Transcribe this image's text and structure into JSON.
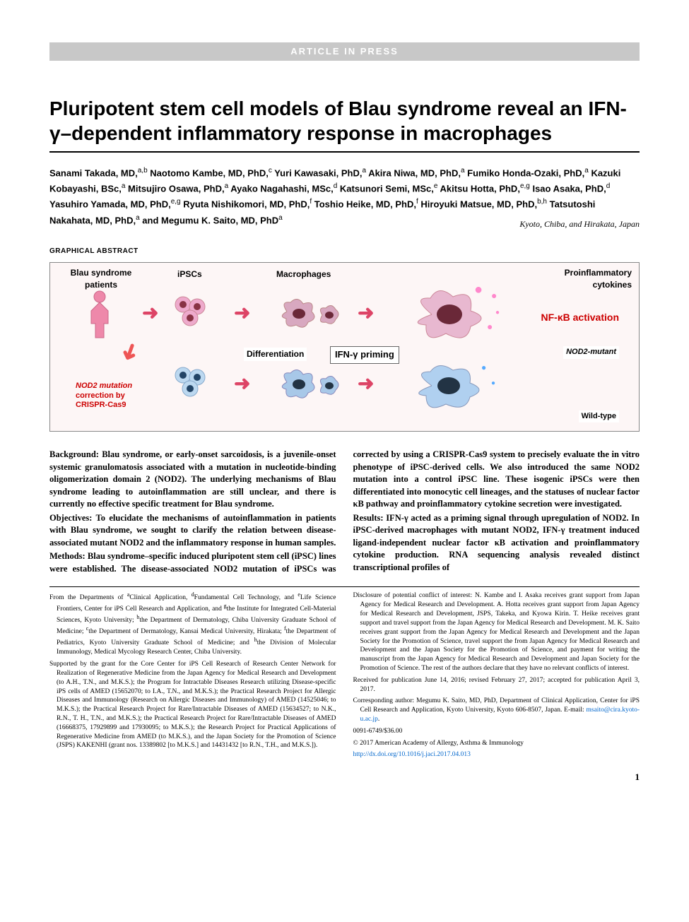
{
  "banner": "ARTICLE IN PRESS",
  "title": "Pluripotent stem cell models of Blau syndrome reveal an IFN-γ–dependent inflammatory response in macrophages",
  "authors_html": "Sanami Takada, MD,<sup>a,b</sup> Naotomo Kambe, MD, PhD,<sup>c</sup> Yuri Kawasaki, PhD,<sup>a</sup> Akira Niwa, MD, PhD,<sup>a</sup> Fumiko Honda-Ozaki, PhD,<sup>a</sup> Kazuki Kobayashi, BSc,<sup>a</sup> Mitsujiro Osawa, PhD,<sup>a</sup> Ayako Nagahashi, MSc,<sup>d</sup> Katsunori Semi, MSc,<sup>e</sup> Akitsu Hotta, PhD,<sup>e,g</sup> Isao Asaka, PhD,<sup>d</sup> Yasuhiro Yamada, MD, PhD,<sup>e,g</sup> Ryuta Nishikomori, MD, PhD,<sup>f</sup> Toshio Heike, MD, PhD,<sup>f</sup> Hiroyuki Matsue, MD, PhD,<sup>b,h</sup> Tatsutoshi Nakahata, MD, PhD,<sup>a</sup> and Megumu K. Saito, MD, PhD<sup>a</sup>",
  "location": "Kyoto, Chiba, and Hirakata, Japan",
  "ga_label": "GRAPHICAL ABSTRACT",
  "ga": {
    "blau": "Blau syndrome patients",
    "ipsc": "iPSCs",
    "macro": "Macrophages",
    "pro": "Proinflammatory cytokines",
    "diff": "Differentiation",
    "ifn": "IFN-γ priming",
    "nfkb": "NF-κB activation",
    "nod2m": "NOD2-mutant",
    "wt": "Wild-type",
    "nod2c_l1": "NOD2 mutation",
    "nod2c_l2": "correction by",
    "nod2c_l3": "CRISPR-Cas9",
    "colors": {
      "bg": "#fdf6f6",
      "arrow": "#d4456a",
      "red_label": "#cc0000",
      "ipsc_pink": "#e8a",
      "ipsc_blue": "#5a8ad8",
      "macro_pink": "#d878a8",
      "macro_blue": "#6a9ae0",
      "nucleus_dark": "#6a2838"
    }
  },
  "abstract": {
    "background_label": "Background:",
    "background": " Blau syndrome, or early-onset sarcoidosis, is a juvenile-onset systemic granulomatosis associated with a mutation in nucleotide-binding oligomerization domain 2 (NOD2). The underlying mechanisms of Blau syndrome leading to autoinflammation are still unclear, and there is currently no effective specific treatment for Blau syndrome.",
    "objectives_label": "Objectives:",
    "objectives": " To elucidate the mechanisms of autoinflammation in patients with Blau syndrome, we sought to clarify the relation between disease-associated mutant NOD2 and the inflammatory response in human samples.",
    "methods_label": "Methods:",
    "methods": " Blau syndrome–specific induced pluripotent stem cell (iPSC) lines were established. The disease-associated NOD2 mutation of iPSCs was corrected by using a CRISPR-Cas9 system to precisely evaluate the in vitro phenotype of iPSC-derived cells. We also introduced the same NOD2 mutation into a control iPSC line. These isogenic iPSCs were then differentiated into monocytic cell lineages, and the statuses of nuclear factor κB pathway and proinflammatory cytokine secretion were investigated.",
    "results_label": "Results:",
    "results": " IFN-γ acted as a priming signal through upregulation of NOD2. In iPSC-derived macrophages with mutant NOD2, IFN-γ treatment induced ligand-independent nuclear factor κB activation and proinflammatory cytokine production. RNA sequencing analysis revealed distinct transcriptional profiles of"
  },
  "footnotes": {
    "from": "From the Departments of <sup>a</sup>Clinical Application, <sup>d</sup>Fundamental Cell Technology, and <sup>e</sup>Life Science Frontiers, Center for iPS Cell Research and Application, and <sup>g</sup>the Institute for Integrated Cell-Material Sciences, Kyoto University; <sup>b</sup>the Department of Dermatology, Chiba University Graduate School of Medicine; <sup>c</sup>the Department of Dermatology, Kansai Medical University, Hirakata; <sup>f</sup>the Department of Pediatrics, Kyoto University Graduate School of Medicine; and <sup>h</sup>the Division of Molecular Immunology, Medical Mycology Research Center, Chiba University.",
    "supported": "Supported by the grant for the Core Center for iPS Cell Research of Research Center Network for Realization of Regenerative Medicine from the Japan Agency for Medical Research and Development (to A.H., T.N., and M.K.S.); the Program for Intractable Diseases Research utilizing Disease-specific iPS cells of AMED (15652070; to I.A., T.N., and M.K.S.); the Practical Research Project for Allergic Diseases and Immunology (Research on Allergic Diseases and Immunology) of AMED (14525046; to M.K.S.); the Practical Research Project for Rare/Intractable Diseases of AMED (15634527; to N.K., R.N., T. H., T.N., and M.K.S.); the Practical Research Project for Rare/Intractable Diseases of AMED (16668375, 17929899 and 17930095; to M.K.S.); the Research Project for Practical Applications of Regenerative Medicine from AMED (to M.K.S.), and the Japan Society for the Promotion of Science (JSPS) KAKENHI (grant nos. 13389802 [to M.K.S.] and 14431432 [to R.N., T.H., and M.K.S.]).",
    "disclosure": "Disclosure of potential conflict of interest: N. Kambe and I. Asaka receives grant support from Japan Agency for Medical Research and Development. A. Hotta receives grant support from Japan Agency for Medical Research and Development, JSPS, Takeka, and Kyowa Kirin. T. Heike receives grant support and travel support from the Japan Agency for Medical Research and Development. M. K. Saito receives grant support from the Japan Agency for Medical Research and Development and the Japan Society for the Promotion of Science, travel support the from Japan Agency for Medical Research and Development and the Japan Society for the Promotion of Science, and payment for writing the manuscript from the Japan Agency for Medical Research and Development and Japan Society for the Promotion of Science. The rest of the authors declare that they have no relevant conflicts of interest.",
    "received": "Received for publication June 14, 2016; revised February 27, 2017; accepted for publication April 3, 2017.",
    "corresponding": "Corresponding author: Megumu K. Saito, MD, PhD, Department of Clinical Application, Center for iPS Cell Research and Application, Kyoto University, Kyoto 606-8507, Japan. E-mail: ",
    "email": "msaito@cira.kyoto-u.ac.jp",
    "issn": "0091-6749/$36.00",
    "copyright": "© 2017 American Academy of Allergy, Asthma & Immunology",
    "doi": "http://dx.doi.org/10.1016/j.jaci.2017.04.013"
  },
  "page_number": "1"
}
